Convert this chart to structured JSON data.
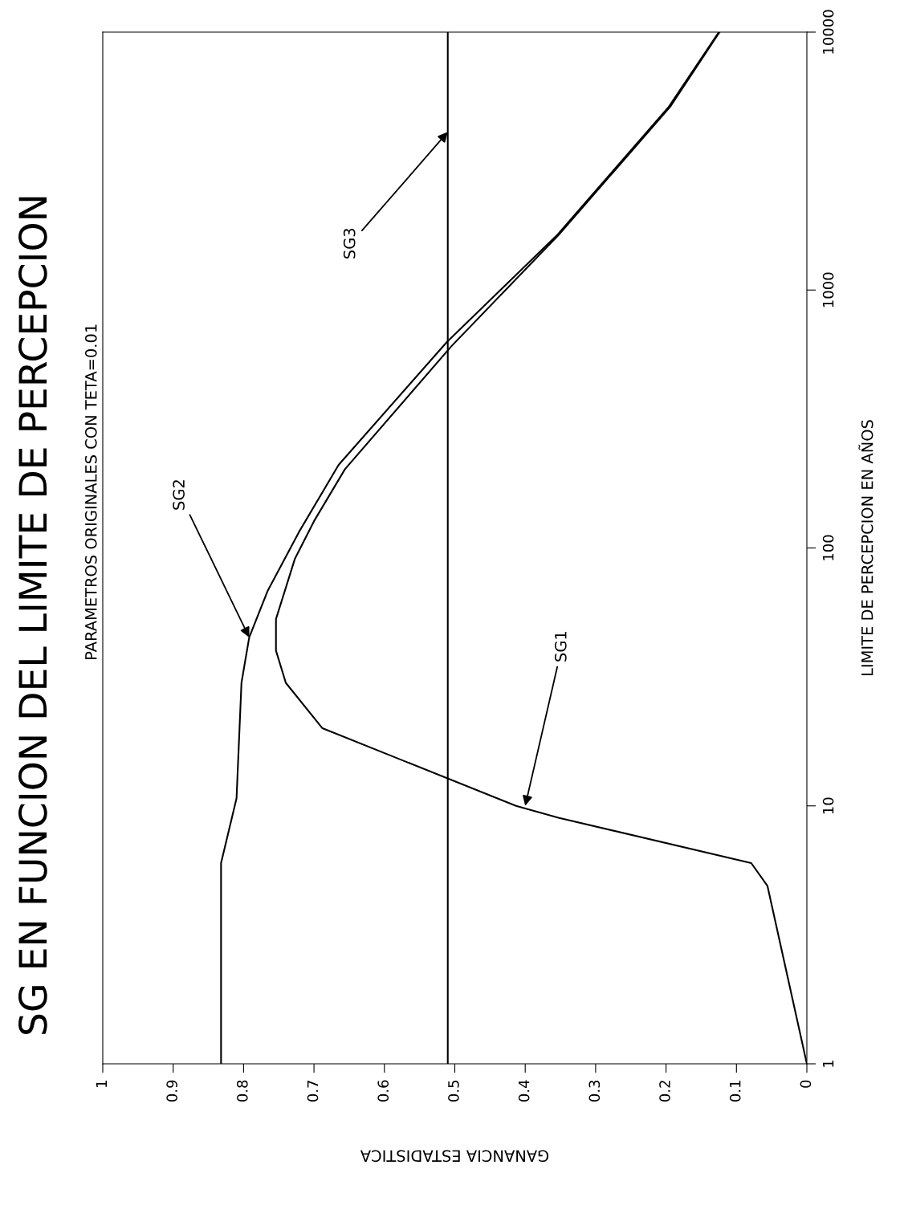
{
  "chart_data": {
    "type": "line",
    "title": "SG EN FUNCION DEL LIMITE DE PERCEPCION",
    "subtitle": "PARAMETROS ORIGINALES CON TETA=0.01",
    "xlabel": "GANANCIA ESTADISTICA",
    "ylabel": "LIMITE DE PERCEPCION EN AÑOS",
    "log": "y",
    "ylim": [
      1,
      10000
    ],
    "yticks": [
      1,
      10,
      100,
      1000,
      10000
    ],
    "xlim": [
      1,
      0
    ],
    "xticks": [
      0,
      0.1,
      0.2,
      0.3,
      0.4,
      0.5,
      0.6,
      0.7,
      0.8,
      0.9,
      1
    ],
    "grid": false,
    "legend": false,
    "marker": "none",
    "line_style": "solid",
    "series": [
      {
        "color": "#000000",
        "values": [
          1,
          4.9,
          6,
          9,
          10,
          20,
          30,
          40,
          53,
          91,
          127,
          202,
          605,
          1630,
          5140,
          10000
        ],
        "x": [
          0,
          0.056,
          0.079,
          0.353,
          0.413,
          0.688,
          0.74,
          0.754,
          0.754,
          0.727,
          0.7,
          0.656,
          0.505,
          0.353,
          0.194,
          0.124
        ]
      },
      {
        "color": "#000000",
        "values": [
          1,
          6,
          10.7,
          30,
          45,
          68,
          117,
          210,
          630,
          1630,
          5140,
          10000
        ],
        "x": [
          0.832,
          0.832,
          0.81,
          0.803,
          0.792,
          0.766,
          0.72,
          0.665,
          0.511,
          0.355,
          0.196,
          0.125
        ]
      },
      {
        "color": "#000000",
        "values": [
          1,
          10000
        ],
        "x": [
          0.51,
          0.51
        ]
      }
    ],
    "annotations": [
      {
        "text": "SG1",
        "x": 0.4,
        "y": 10
      },
      {
        "text": "SG2",
        "x": 0.792,
        "y": 45
      },
      {
        "text": "SG3",
        "x": 0.51,
        "y": 4100
      }
    ]
  }
}
